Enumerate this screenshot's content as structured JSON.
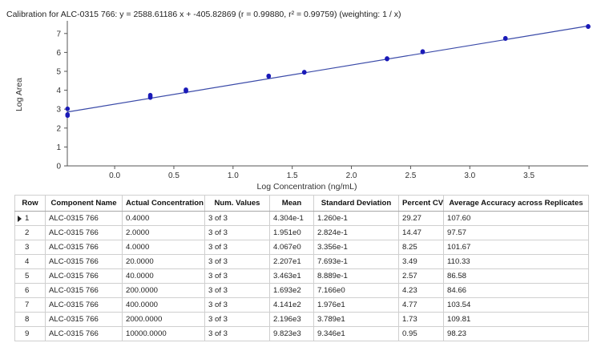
{
  "chart_data": {
    "type": "scatter",
    "title": "Calibration for ALC-0315 766: y = 2588.61186 x + -405.82869 (r = 0.99880, r² = 0.99759)  (weighting: 1 / x)",
    "xlabel": "Log Concentration (ng/mL)",
    "ylabel": "Log Area",
    "xlim": [
      -0.4,
      4.0
    ],
    "ylim": [
      0,
      7.5
    ],
    "x_ticks": [
      0.0,
      0.5,
      1.0,
      1.5,
      2.0,
      2.5,
      3.0,
      3.5
    ],
    "x_tick_labels": [
      "0.0",
      "0.5",
      "1.0",
      "1.5",
      "2.0",
      "2.5",
      "3.0",
      "3.5"
    ],
    "y_ticks": [
      0,
      1,
      2,
      3,
      4,
      5,
      6,
      7
    ],
    "y_tick_labels": [
      "0",
      "1",
      "2",
      "3",
      "4",
      "5",
      "6",
      "7"
    ],
    "grid": false,
    "line": {
      "x": [
        -0.4,
        4.0
      ],
      "y": [
        2.85,
        7.4
      ]
    },
    "points": {
      "x": [
        -0.398,
        -0.398,
        -0.398,
        0.301,
        0.301,
        0.301,
        0.602,
        0.602,
        0.602,
        1.301,
        1.301,
        1.602,
        1.602,
        2.301,
        2.301,
        2.602,
        2.602,
        3.301,
        3.301,
        4.0,
        4.0
      ],
      "y": [
        3.02,
        2.72,
        2.66,
        3.74,
        3.67,
        3.61,
        4.03,
        3.98,
        3.95,
        4.76,
        4.73,
        4.96,
        4.94,
        5.68,
        5.65,
        6.05,
        6.02,
        6.75,
        6.73,
        7.38,
        7.36
      ]
    },
    "colors": {
      "line": "#3a4aa8",
      "points": "#1a1ab8",
      "axis": "#555555"
    }
  },
  "table": {
    "headers": [
      "Row",
      "Component Name",
      "Actual Concentration",
      "Num. Values",
      "Mean",
      "Standard Deviation",
      "Percent CV",
      "Average Accuracy across Replicates"
    ],
    "rows": [
      [
        "1",
        "ALC-0315 766",
        "0.4000",
        "3 of 3",
        "4.304e-1",
        "1.260e-1",
        "29.27",
        "107.60"
      ],
      [
        "2",
        "ALC-0315 766",
        "2.0000",
        "3 of 3",
        "1.951e0",
        "2.824e-1",
        "14.47",
        "97.57"
      ],
      [
        "3",
        "ALC-0315 766",
        "4.0000",
        "3 of 3",
        "4.067e0",
        "3.356e-1",
        "8.25",
        "101.67"
      ],
      [
        "4",
        "ALC-0315 766",
        "20.0000",
        "3 of 3",
        "2.207e1",
        "7.693e-1",
        "3.49",
        "110.33"
      ],
      [
        "5",
        "ALC-0315 766",
        "40.0000",
        "3 of 3",
        "3.463e1",
        "8.889e-1",
        "2.57",
        "86.58"
      ],
      [
        "6",
        "ALC-0315 766",
        "200.0000",
        "3 of 3",
        "1.693e2",
        "7.166e0",
        "4.23",
        "84.66"
      ],
      [
        "7",
        "ALC-0315 766",
        "400.0000",
        "3 of 3",
        "4.141e2",
        "1.976e1",
        "4.77",
        "103.54"
      ],
      [
        "8",
        "ALC-0315 766",
        "2000.0000",
        "3 of 3",
        "2.196e3",
        "3.789e1",
        "1.73",
        "109.81"
      ],
      [
        "9",
        "ALC-0315 766",
        "10000.0000",
        "3 of 3",
        "9.823e3",
        "9.346e1",
        "0.95",
        "98.23"
      ]
    ],
    "selected_row_index": 0
  }
}
